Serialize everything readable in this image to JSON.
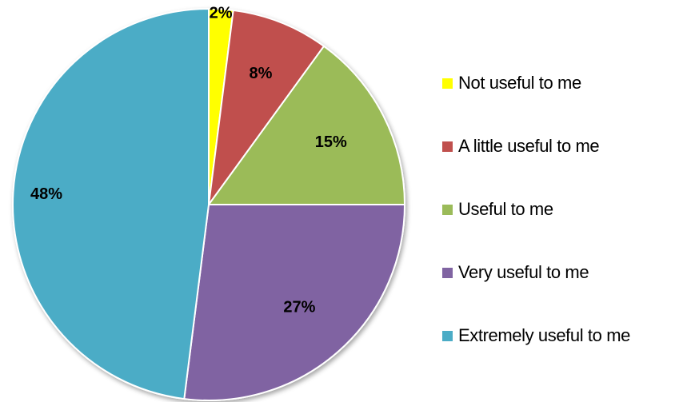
{
  "chart_data": {
    "type": "pie",
    "title": "",
    "start_angle_deg": 0,
    "direction": "clockwise",
    "legend_position": "right",
    "categories": [
      "Not useful to me",
      "A little useful to me",
      "Useful to me",
      "Very useful to me",
      "Extremely useful to me"
    ],
    "values": [
      2,
      8,
      15,
      27,
      48
    ],
    "data_labels": [
      "2%",
      "8%",
      "15%",
      "27%",
      "48%"
    ],
    "colors": [
      "#FFFF00",
      "#C0504D",
      "#9BBB59",
      "#8064A2",
      "#4BACC6"
    ]
  }
}
